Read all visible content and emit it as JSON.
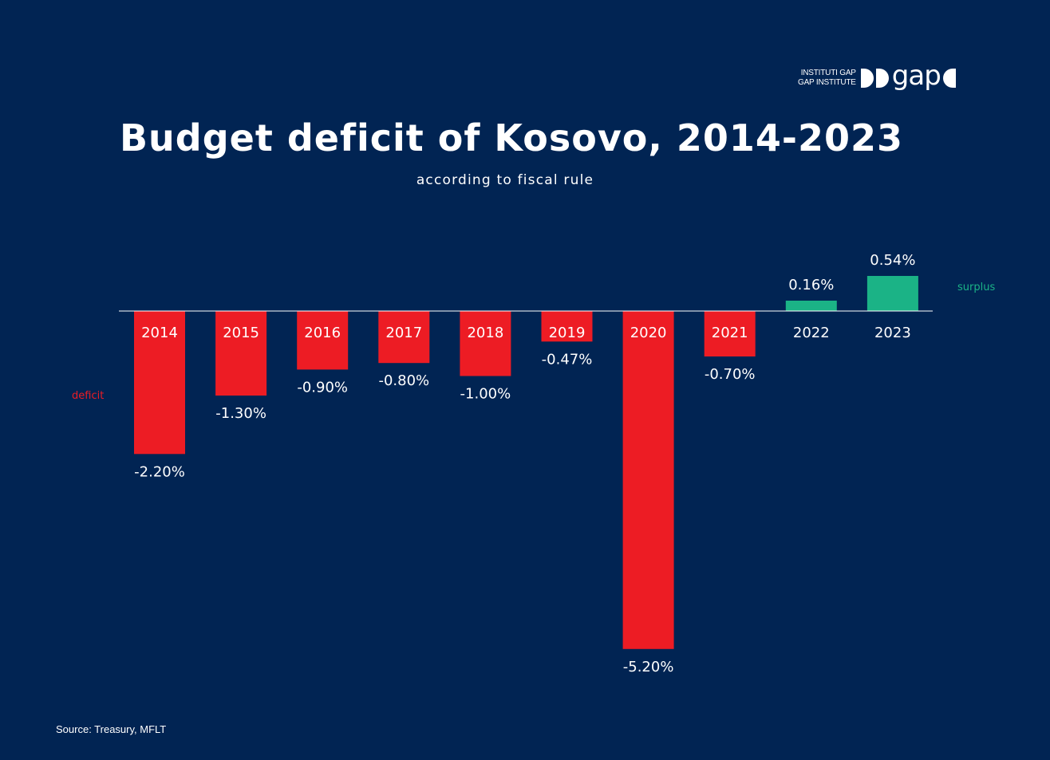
{
  "logo": {
    "line1": "INSTITUTI GAP",
    "line2": "GAP INSTITUTE",
    "word": "gap"
  },
  "title": "Budget deficit of Kosovo, 2014-2023",
  "subtitle": "according to fiscal rule",
  "notes": {
    "deficit": "deficit",
    "surplus": "surplus"
  },
  "source": "Source: Treasury, MFLT",
  "colors": {
    "background": "#012453",
    "deficit": "#ED1C24",
    "surplus": "#1BB386",
    "text": "#FFFFFF"
  },
  "chart_data": {
    "type": "bar",
    "title": "Budget deficit of Kosovo, 2014-2023",
    "subtitle": "according to fiscal rule",
    "xlabel": "",
    "ylabel": "",
    "unit": "%",
    "categories": [
      "2014",
      "2015",
      "2016",
      "2017",
      "2018",
      "2019",
      "2020",
      "2021",
      "2022",
      "2023"
    ],
    "values": [
      -2.2,
      -1.3,
      -0.9,
      -0.8,
      -1.0,
      -0.47,
      -5.2,
      -0.7,
      0.16,
      0.54
    ],
    "value_labels": [
      "-2.20%",
      "-1.30%",
      "-0.90%",
      "-0.80%",
      "-1.00%",
      "-0.47%",
      "-5.20%",
      "-0.70%",
      "0.16%",
      "0.54%"
    ],
    "ylim": [
      -5.2,
      0.54
    ],
    "grid": false,
    "legend": "none"
  }
}
